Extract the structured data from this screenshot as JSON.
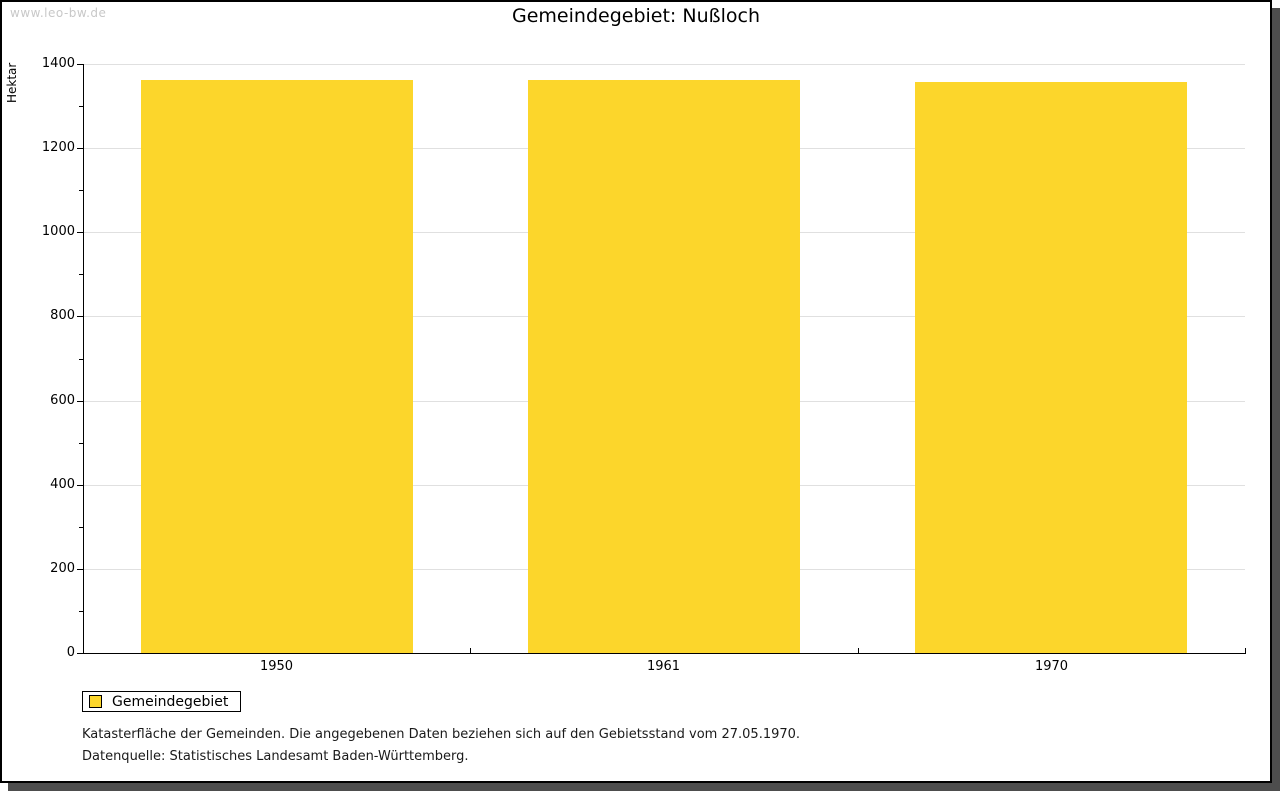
{
  "watermark": "www.leo-bw.de",
  "title": "Gemeindegebiet: Nußloch",
  "legend": {
    "label": "Gemeindegebiet"
  },
  "footnotes": [
    "Katasterfläche der Gemeinden. Die angegebenen Daten beziehen sich auf den Gebietsstand vom 27.05.1970.",
    "Datenquelle: Statistisches Landesamt Baden-Württemberg."
  ],
  "colors": {
    "bar": "#FCD62B",
    "gridline": "#E0E0E0",
    "axis": "#000000",
    "frame_border": "#000000",
    "frame_shadow": "#4D4D4D",
    "watermark": "#C8C8C8",
    "background": "#FFFFFF"
  },
  "chart_data": {
    "type": "bar",
    "title": "Gemeindegebiet: Nußloch",
    "categories": [
      "1950",
      "1961",
      "1970"
    ],
    "series": [
      {
        "name": "Gemeindegebiet",
        "values": [
          1362,
          1362,
          1357
        ]
      }
    ],
    "xlabel": "",
    "ylabel": "Hektar",
    "ylim": [
      0,
      1400
    ],
    "ytick_step": 200,
    "yminor_step": 100,
    "ytick_labels": [
      "0",
      "200",
      "400",
      "600",
      "800",
      "1000",
      "1200",
      "1400"
    ],
    "grid": true,
    "legend_position": "bottom-left",
    "bar_color": "#FCD62B",
    "gridline_color": "#E0E0E0"
  }
}
